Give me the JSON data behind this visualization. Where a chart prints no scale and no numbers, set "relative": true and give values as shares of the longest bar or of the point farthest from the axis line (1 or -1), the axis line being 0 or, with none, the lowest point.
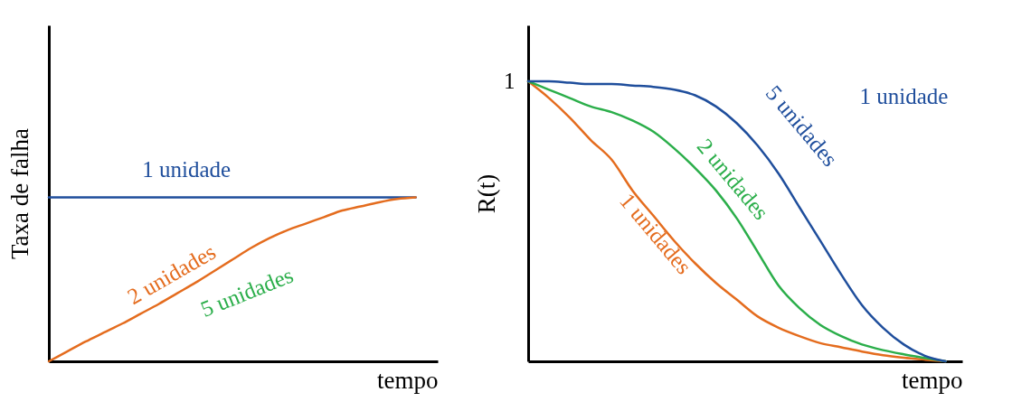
{
  "chart_data": [
    {
      "type": "line",
      "relative": true,
      "ylabel": "Taxa de falha",
      "xlabel": "tempo",
      "grid": false,
      "legend": false,
      "categories": [
        null,
        null,
        null,
        null,
        null,
        null,
        null,
        null,
        null,
        null,
        null,
        null,
        null,
        null,
        null,
        null,
        null,
        null,
        null,
        null,
        null
      ],
      "series": [
        {
          "name": "1 unidade",
          "color": "#1f4e9c",
          "values": [
            1,
            1,
            1,
            1,
            1,
            1,
            1,
            1,
            1,
            1,
            1,
            1,
            1,
            1,
            1,
            1,
            1,
            1,
            1,
            1,
            1
          ]
        },
        {
          "name": "2 unidades",
          "color": "#e46c1e",
          "values": [
            0,
            0.06,
            0.12,
            0.175,
            0.23,
            0.29,
            0.35,
            0.415,
            0.48,
            0.55,
            0.62,
            0.69,
            0.75,
            0.8,
            0.84,
            0.88,
            0.92,
            0.945,
            0.97,
            0.99,
            1
          ]
        }
      ],
      "annotations": [
        "5 unidades"
      ]
    },
    {
      "type": "line",
      "relative": true,
      "ylabel": "R(t)",
      "xlabel": "tempo",
      "grid": false,
      "legend": false,
      "categories": [
        null,
        null,
        null,
        null,
        null,
        null,
        null,
        null,
        null,
        null,
        null,
        null,
        null,
        null,
        null,
        null,
        null,
        null,
        null,
        null,
        null
      ],
      "series": [
        {
          "name": "1 unidades",
          "color": "#e46c1e",
          "values": [
            1,
            0.94,
            0.87,
            0.79,
            0.72,
            0.61,
            0.52,
            0.43,
            0.35,
            0.28,
            0.22,
            0.16,
            0.12,
            0.09,
            0.065,
            0.05,
            0.035,
            0.022,
            0.013,
            0.006,
            0
          ]
        },
        {
          "name": "2 unidades",
          "color": "#2bae4a",
          "values": [
            1,
            0.97,
            0.94,
            0.91,
            0.89,
            0.86,
            0.82,
            0.76,
            0.69,
            0.61,
            0.51,
            0.39,
            0.27,
            0.19,
            0.13,
            0.09,
            0.06,
            0.04,
            0.025,
            0.012,
            0
          ]
        },
        {
          "name": "5 unidades",
          "color": "#1f4e9c",
          "values": [
            1,
            1,
            0.995,
            0.99,
            0.99,
            0.985,
            0.98,
            0.97,
            0.95,
            0.91,
            0.85,
            0.77,
            0.67,
            0.55,
            0.43,
            0.31,
            0.2,
            0.12,
            0.06,
            0.02,
            0
          ]
        }
      ],
      "annotations": [
        "1",
        "1 unidade"
      ]
    }
  ]
}
